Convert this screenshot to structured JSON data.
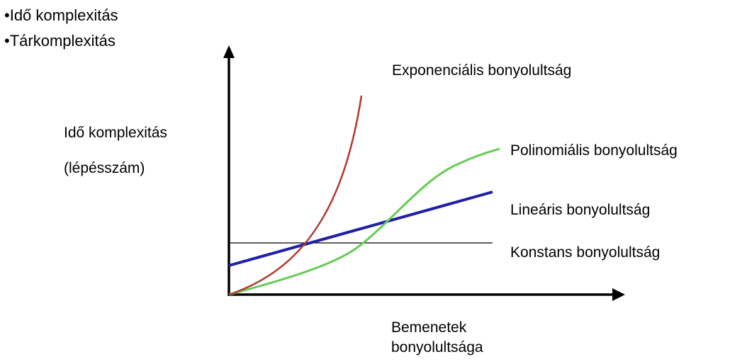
{
  "bullets": [
    "•Idő komplexitás",
    "•Tárkomplexitás"
  ],
  "y_axis_label": {
    "line1": "Idő komplexitás",
    "line2": "(lépésszám)"
  },
  "x_axis_label": {
    "line1": "Bemenetek",
    "line2": "bonyolultsága"
  },
  "curves": {
    "exponential": {
      "label": "Exponenciális bonyolultság",
      "color": "#b03a2e"
    },
    "polynomial": {
      "label": "Polinomiális  bonyolultság",
      "color": "#66cc55"
    },
    "linear": {
      "label": "Lineáris bonyolultság",
      "color": "#1f1fa8"
    },
    "constant": {
      "label": "Konstans bonyolultság",
      "color": "#000000"
    }
  },
  "axis_color": "#000000"
}
